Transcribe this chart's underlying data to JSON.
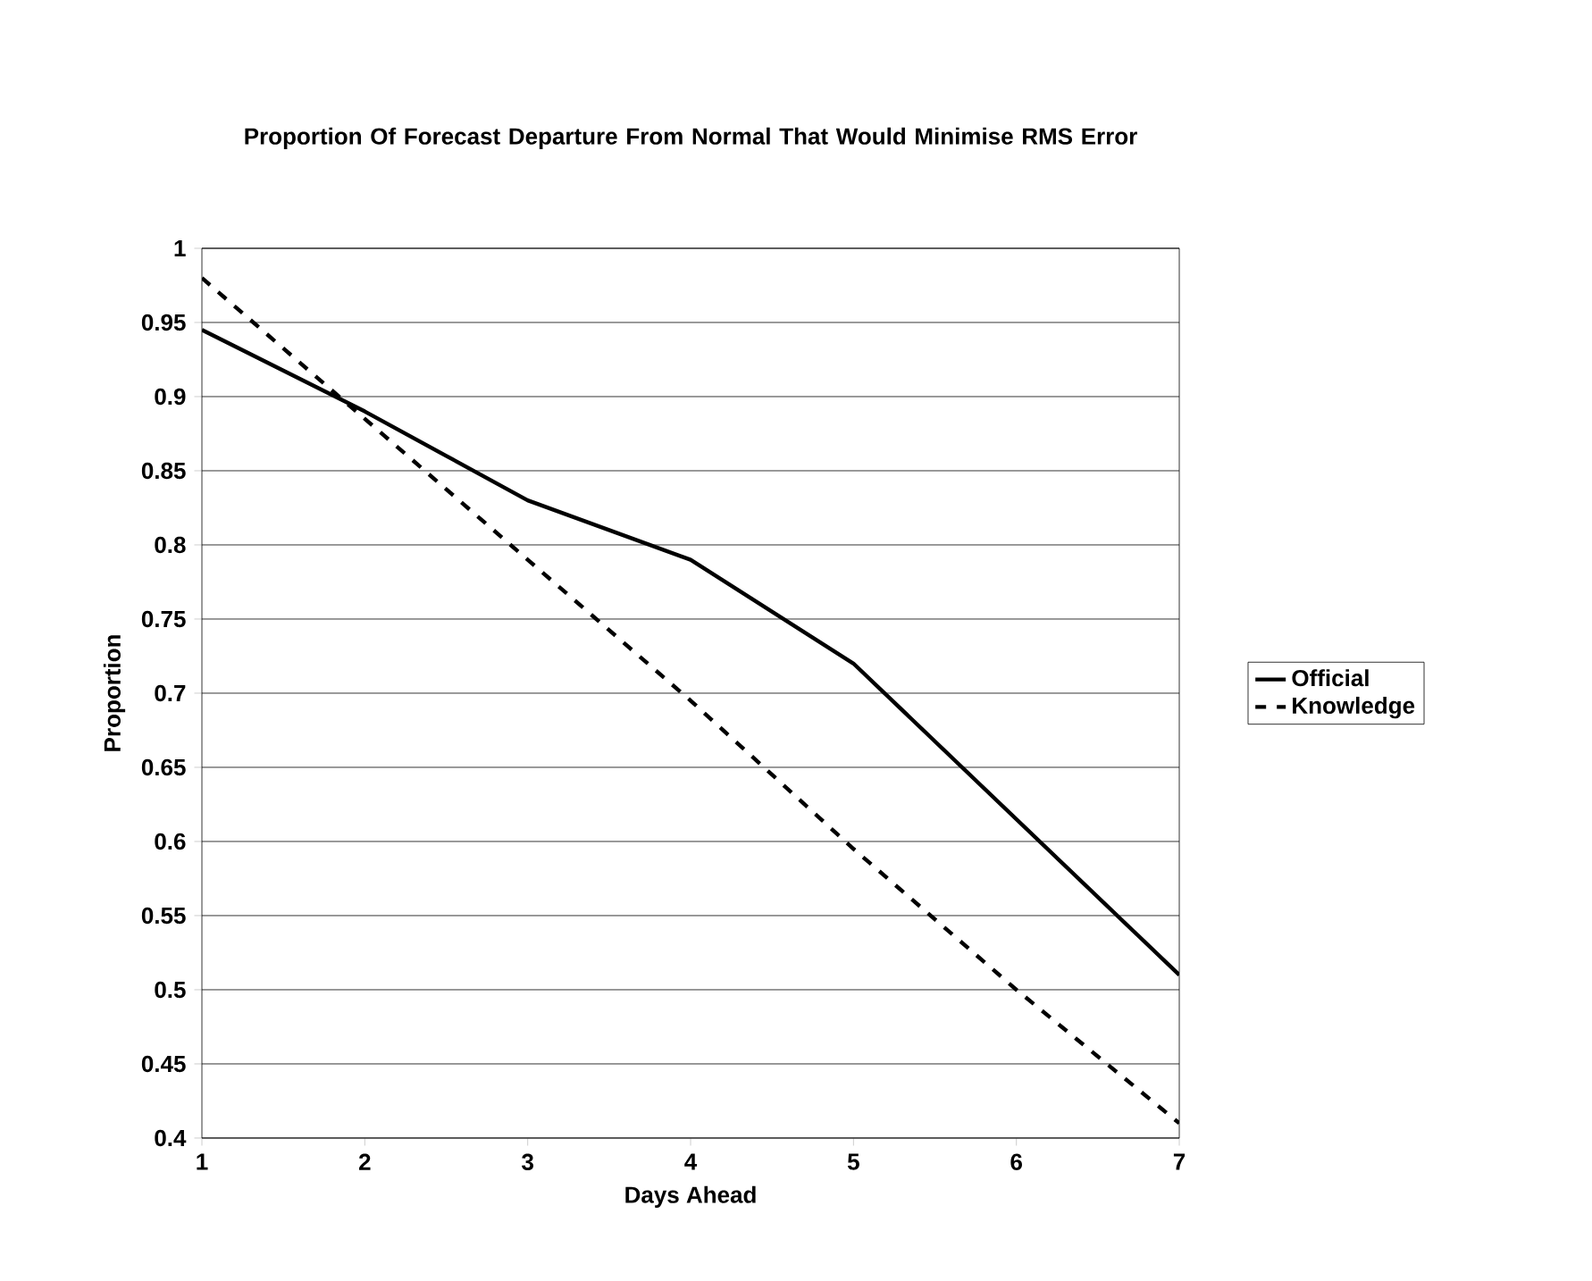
{
  "chart_data": {
    "type": "line",
    "title": "Proportion Of Forecast Departure From Normal That Would Minimise RMS Error",
    "xlabel": "Days Ahead",
    "ylabel": "Proportion",
    "x": [
      1,
      2,
      3,
      4,
      5,
      6,
      7
    ],
    "series": [
      {
        "name": "Official",
        "color": "#000000",
        "line_style": "solid",
        "values": [
          0.945,
          0.89,
          0.83,
          0.79,
          0.72,
          0.615,
          0.51
        ]
      },
      {
        "name": "Knowledge",
        "color": "#000000",
        "line_style": "dashed",
        "values": [
          0.98,
          0.885,
          0.79,
          0.695,
          0.595,
          0.5,
          0.41
        ]
      }
    ],
    "xlim": [
      1,
      7
    ],
    "xticks": [
      1,
      2,
      3,
      4,
      5,
      6,
      7
    ],
    "ylim": [
      0.4,
      1
    ],
    "yticks": [
      0.4,
      0.45,
      0.5,
      0.55,
      0.6,
      0.65,
      0.7,
      0.75,
      0.8,
      0.85,
      0.9,
      0.95,
      1
    ],
    "grid": "y",
    "legend": "right",
    "marker": "none"
  }
}
